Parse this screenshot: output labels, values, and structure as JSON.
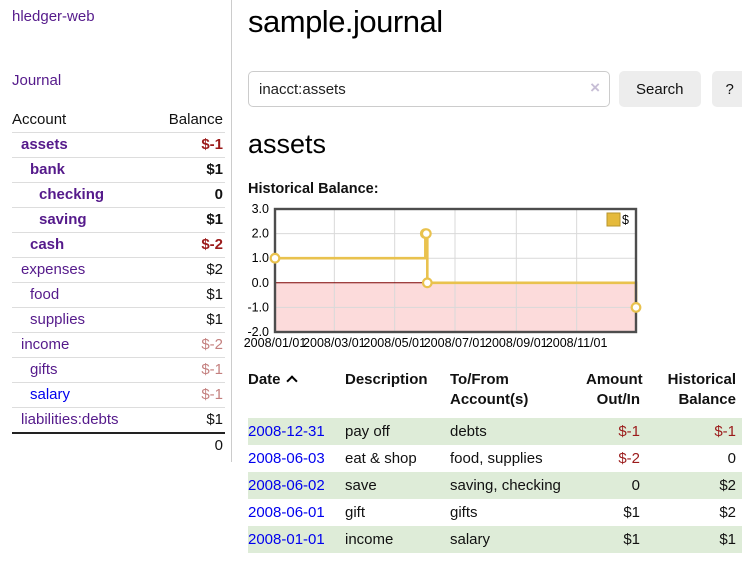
{
  "sidebar": {
    "app_title": "hledger-web",
    "nav": {
      "journal": "Journal"
    },
    "accounts_table": {
      "headers": {
        "account": "Account",
        "balance": "Balance"
      },
      "rows": [
        {
          "name": "assets",
          "balance": "$-1",
          "depth": 0,
          "bold": true,
          "link": "visited",
          "balance_style": "negative"
        },
        {
          "name": "bank",
          "balance": "$1",
          "depth": 1,
          "bold": true,
          "link": "visited",
          "balance_style": "normal"
        },
        {
          "name": "checking",
          "balance": "0",
          "depth": 2,
          "bold": true,
          "link": "visited",
          "balance_style": "normal"
        },
        {
          "name": "saving",
          "balance": "$1",
          "depth": 2,
          "bold": true,
          "link": "visited",
          "balance_style": "normal"
        },
        {
          "name": "cash",
          "balance": "$-2",
          "depth": 1,
          "bold": true,
          "link": "visited",
          "balance_style": "negative"
        },
        {
          "name": "expenses",
          "balance": "$2",
          "depth": 0,
          "bold": false,
          "link": "visited",
          "balance_style": "normal"
        },
        {
          "name": "food",
          "balance": "$1",
          "depth": 1,
          "bold": false,
          "link": "visited",
          "balance_style": "normal"
        },
        {
          "name": "supplies",
          "balance": "$1",
          "depth": 1,
          "bold": false,
          "link": "visited",
          "balance_style": "normal"
        },
        {
          "name": "income",
          "balance": "$-2",
          "depth": 0,
          "bold": false,
          "link": "visited",
          "balance_style": "muted"
        },
        {
          "name": "gifts",
          "balance": "$-1",
          "depth": 1,
          "bold": false,
          "link": "visited",
          "balance_style": "muted"
        },
        {
          "name": "salary",
          "balance": "$-1",
          "depth": 1,
          "bold": false,
          "link": "unvisited",
          "balance_style": "muted"
        },
        {
          "name": "liabilities:debts",
          "balance": "$1",
          "depth": 0,
          "bold": false,
          "link": "visited",
          "balance_style": "normal"
        }
      ],
      "total": "0"
    }
  },
  "header": {
    "title": "sample.journal"
  },
  "search": {
    "query": "inacct:assets",
    "clear_icon": "×",
    "search_label": "Search",
    "help_label": "?"
  },
  "account_page": {
    "heading": "assets",
    "chart_title": "Historical Balance:"
  },
  "chart_data": {
    "type": "line",
    "subtype": "step-after",
    "title": "Historical Balance",
    "series": [
      {
        "name": "$",
        "points": [
          [
            "2008-01-01",
            1
          ],
          [
            "2008-06-01",
            2
          ],
          [
            "2008-06-02",
            2
          ],
          [
            "2008-06-03",
            0
          ],
          [
            "2008-12-31",
            -1
          ]
        ]
      }
    ],
    "x_range": [
      "2008-01-01",
      "2008-12-31"
    ],
    "ylim": [
      -2,
      3
    ],
    "yticks": [
      "3.0",
      "2.0",
      "1.0",
      "0.0",
      "-1.0",
      "-2.0"
    ],
    "xticks": [
      {
        "date": "2008-01-01",
        "label": "2008/01/01"
      },
      {
        "date": "2008-03-01",
        "label": "2008/03/01"
      },
      {
        "date": "2008-05-01",
        "label": "2008/05/01"
      },
      {
        "date": "2008-07-01",
        "label": "2008/07/01"
      },
      {
        "date": "2008-09-01",
        "label": "2008/09/01"
      },
      {
        "date": "2008-11-01",
        "label": "2008/11/01"
      }
    ],
    "legend": {
      "label": "$",
      "position": "top-right"
    },
    "grid": true,
    "colors": {
      "line": "#e9c24e",
      "marker_fill": "#ffffff",
      "legend_fill": "#e5ba3c",
      "legend_border": "#b8952e",
      "negative_region": "#fcdbdb",
      "zero_line": "#7d0000",
      "grid": "#d9d9d9",
      "frame": "#4d4d4d",
      "tick_text": "#000000"
    }
  },
  "register_table": {
    "headers": {
      "date": "Date",
      "sort": "ascending",
      "description": "Description",
      "accounts": "To/From Account(s)",
      "amount": "Amount Out/In",
      "balance": "Historical Balance"
    },
    "rows": [
      {
        "date": "2008-12-31",
        "description": "pay off",
        "accounts": "debts",
        "amount": "$-1",
        "balance": "$-1",
        "amount_style": "negative",
        "balance_style": "negative"
      },
      {
        "date": "2008-06-03",
        "description": "eat & shop",
        "accounts": "food, supplies",
        "amount": "$-2",
        "balance": "0",
        "amount_style": "negative",
        "balance_style": "normal"
      },
      {
        "date": "2008-06-02",
        "description": "save",
        "accounts": "saving, checking",
        "amount": "0",
        "balance": "$2",
        "amount_style": "normal",
        "balance_style": "normal"
      },
      {
        "date": "2008-06-01",
        "description": "gift",
        "accounts": "gifts",
        "amount": "$1",
        "balance": "$2",
        "amount_style": "normal",
        "balance_style": "normal"
      },
      {
        "date": "2008-01-01",
        "description": "income",
        "accounts": "salary",
        "amount": "$1",
        "balance": "$1",
        "amount_style": "normal",
        "balance_style": "normal"
      }
    ]
  },
  "colors": {
    "link_visited": "#551a8b",
    "link_unvisited": "#0000ee",
    "negative": "#9b1b1b",
    "negative_muted": "#c4807f",
    "row_stripe": "#deecd8"
  }
}
